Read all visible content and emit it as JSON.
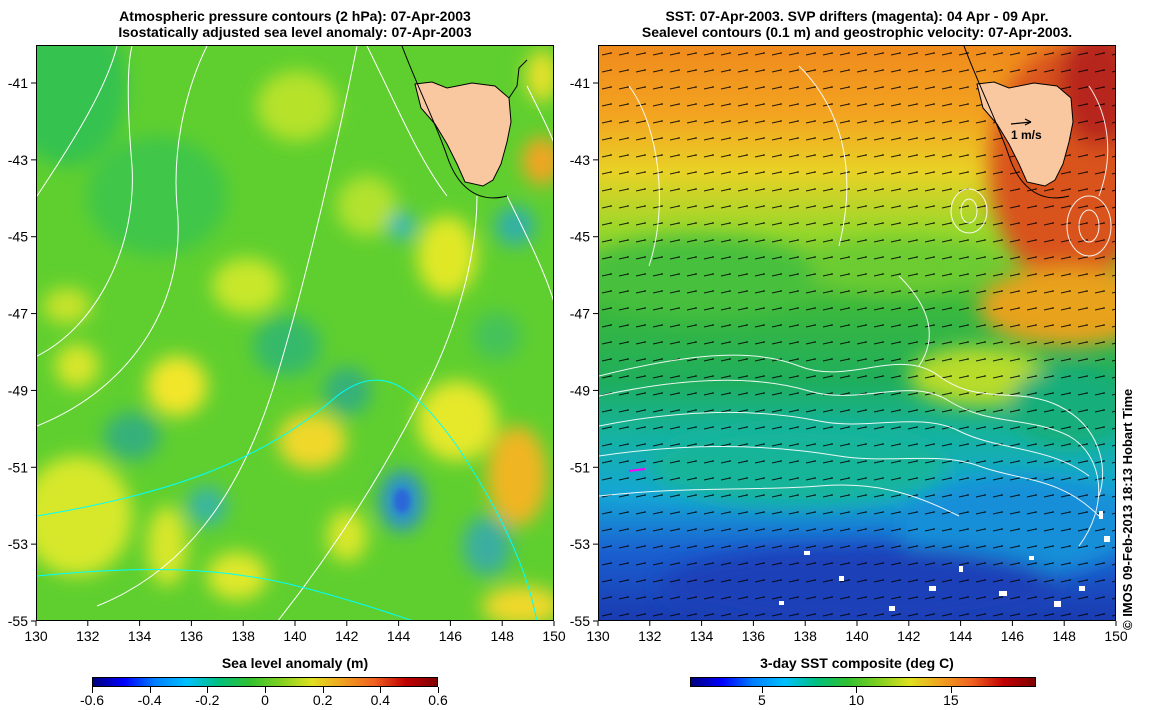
{
  "left_panel": {
    "title_line1": "Atmospheric pressure contours (2 hPa): 07-Apr-2003",
    "title_line2": "Isostatically adjusted sea level anomaly: 07-Apr-2003",
    "colorbar": {
      "title": "Sea level anomaly (m)",
      "ticks": [
        "-0.6",
        "-0.4",
        "-0.2",
        "0",
        "0.2",
        "0.4",
        "0.6"
      ],
      "tick_values": [
        -0.6,
        -0.4,
        -0.2,
        0,
        0.2,
        0.4,
        0.6
      ],
      "range": [
        -0.6,
        0.6
      ]
    }
  },
  "right_panel": {
    "title_line1": "SST: 07-Apr-2003. SVP drifters (magenta): 04 Apr - 09 Apr.",
    "title_line2": "Sealevel contours (0.1 m) and geostrophic velocity: 07-Apr-2003.",
    "velocity_scale_label": "1 m/s",
    "colorbar": {
      "title": "3-day SST composite (deg C)",
      "ticks": [
        "5",
        "10",
        "15"
      ],
      "tick_values": [
        5,
        10,
        15
      ],
      "range": [
        1.2,
        19.5
      ]
    }
  },
  "axes": {
    "lon_ticks": [
      "130",
      "132",
      "134",
      "136",
      "138",
      "140",
      "142",
      "144",
      "146",
      "148",
      "150"
    ],
    "lat_ticks": [
      "-41",
      "-43",
      "-45",
      "-47",
      "-49",
      "-51",
      "-53",
      "-55"
    ]
  },
  "credit": "© IMOS 09-Feb-2013 18:13 Hobart Time",
  "colors": {
    "land": "#fac8a0",
    "contour_white": "#ffffff",
    "contour_cyan": "#00ffff",
    "drifter": "#ff00ff"
  }
}
